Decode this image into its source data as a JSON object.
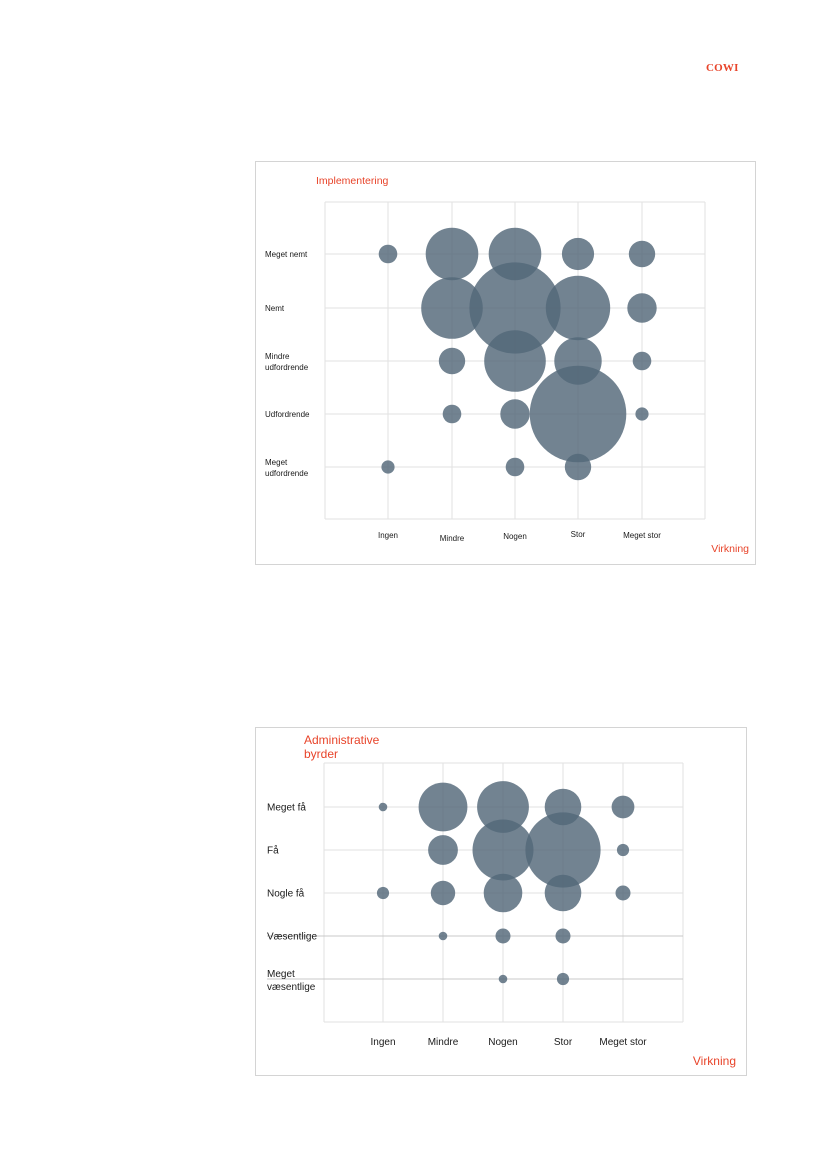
{
  "header": {
    "logo_text": "COWI"
  },
  "colors": {
    "bubble": "#536879",
    "accent": "#e8442a",
    "grid": "#e2e2e2",
    "text": "#1a1a1a"
  },
  "charts": [
    {
      "chart_data": {
        "type": "bubble",
        "ytitle": "Implementering",
        "xtitle": "Virkning",
        "x_categories": [
          "Ingen",
          "Mindre",
          "Nogen",
          "Stor",
          "Meget stor"
        ],
        "y_categories": [
          "Meget nemt",
          "Nemt",
          "Mindre udfordrende",
          "Udfordrende",
          "Meget udfordrende"
        ],
        "grid": true,
        "points": [
          {
            "x": "Ingen",
            "y": "Meget nemt",
            "size": 1
          },
          {
            "x": "Mindre",
            "y": "Meget nemt",
            "size": 8
          },
          {
            "x": "Nogen",
            "y": "Meget nemt",
            "size": 8
          },
          {
            "x": "Stor",
            "y": "Meget nemt",
            "size": 3
          },
          {
            "x": "Meget stor",
            "y": "Meget nemt",
            "size": 2
          },
          {
            "x": "Mindre",
            "y": "Nemt",
            "size": 11
          },
          {
            "x": "Nogen",
            "y": "Nemt",
            "size": 24
          },
          {
            "x": "Stor",
            "y": "Nemt",
            "size": 12
          },
          {
            "x": "Meget stor",
            "y": "Nemt",
            "size": 2.5
          },
          {
            "x": "Mindre",
            "y": "Mindre udfordrende",
            "size": 2
          },
          {
            "x": "Nogen",
            "y": "Mindre udfordrende",
            "size": 11
          },
          {
            "x": "Stor",
            "y": "Mindre udfordrende",
            "size": 6.5
          },
          {
            "x": "Meget stor",
            "y": "Mindre udfordrende",
            "size": 1
          },
          {
            "x": "Mindre",
            "y": "Udfordrende",
            "size": 1
          },
          {
            "x": "Nogen",
            "y": "Udfordrende",
            "size": 2.5
          },
          {
            "x": "Stor",
            "y": "Udfordrende",
            "size": 27
          },
          {
            "x": "Meget stor",
            "y": "Udfordrende",
            "size": 0.5
          },
          {
            "x": "Ingen",
            "y": "Meget udfordrende",
            "size": 0.5
          },
          {
            "x": "Nogen",
            "y": "Meget udfordrende",
            "size": 1
          },
          {
            "x": "Stor",
            "y": "Meget udfordrende",
            "size": 2
          }
        ]
      }
    },
    {
      "chart_data": {
        "type": "bubble",
        "ytitle": "Administrative byrder",
        "xtitle": "Virkning",
        "x_categories": [
          "Ingen",
          "Mindre",
          "Nogen",
          "Stor",
          "Meget stor"
        ],
        "y_categories": [
          "Meget få",
          "Få",
          "Nogle få",
          "Væsentlige",
          "Meget væsentlige"
        ],
        "grid": true,
        "points": [
          {
            "x": "Ingen",
            "y": "Meget få",
            "size": 0.5
          },
          {
            "x": "Mindre",
            "y": "Meget få",
            "size": 16
          },
          {
            "x": "Nogen",
            "y": "Meget få",
            "size": 18
          },
          {
            "x": "Stor",
            "y": "Meget få",
            "size": 9
          },
          {
            "x": "Meget stor",
            "y": "Meget få",
            "size": 3.5
          },
          {
            "x": "Mindre",
            "y": "Få",
            "size": 6
          },
          {
            "x": "Nogen",
            "y": "Få",
            "size": 25
          },
          {
            "x": "Stor",
            "y": "Få",
            "size": 38
          },
          {
            "x": "Meget stor",
            "y": "Få",
            "size": 1
          },
          {
            "x": "Ingen",
            "y": "Nogle få",
            "size": 1
          },
          {
            "x": "Mindre",
            "y": "Nogle få",
            "size": 4
          },
          {
            "x": "Nogen",
            "y": "Nogle få",
            "size": 10
          },
          {
            "x": "Stor",
            "y": "Nogle få",
            "size": 9
          },
          {
            "x": "Meget stor",
            "y": "Nogle få",
            "size": 1.5
          },
          {
            "x": "Mindre",
            "y": "Væsentlige",
            "size": 0.5
          },
          {
            "x": "Nogen",
            "y": "Væsentlige",
            "size": 1.5
          },
          {
            "x": "Stor",
            "y": "Væsentlige",
            "size": 1.5
          },
          {
            "x": "Nogen",
            "y": "Meget væsentlige",
            "size": 0.5
          },
          {
            "x": "Stor",
            "y": "Meget væsentlige",
            "size": 1
          }
        ]
      }
    }
  ]
}
